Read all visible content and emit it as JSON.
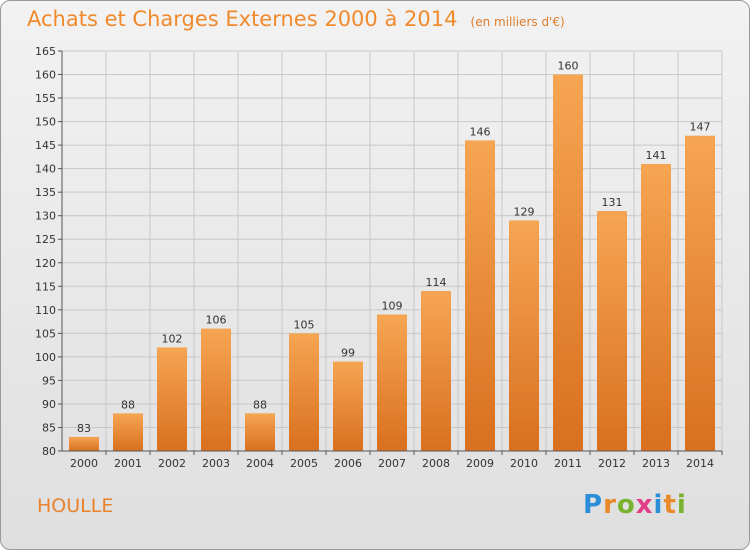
{
  "header": {
    "title": "Achats et Charges Externes 2000 à 2014",
    "subtitle": "(en milliers d'€)"
  },
  "footer": {
    "commune": "HOULLE",
    "logo": "Proxiti",
    "logo_letters": [
      "P",
      "r",
      "o",
      "x",
      "i",
      "t",
      "i"
    ]
  },
  "colors": {
    "bar_light": "#f6a553",
    "bar_dark": "#d8701f",
    "grid": "#c8c8c8",
    "accent": "#f08a2c"
  },
  "chart_data": {
    "type": "bar",
    "title": "Achats et Charges Externes 2000 à 2014",
    "subtitle": "(en milliers d'€)",
    "categories": [
      "2000",
      "2001",
      "2002",
      "2003",
      "2004",
      "2005",
      "2006",
      "2007",
      "2008",
      "2009",
      "2010",
      "2011",
      "2012",
      "2013",
      "2014"
    ],
    "values": [
      83,
      88,
      102,
      106,
      88,
      105,
      99,
      109,
      114,
      146,
      129,
      160,
      131,
      141,
      147
    ],
    "ylim": [
      80,
      165
    ],
    "yticks": [
      80,
      85,
      90,
      95,
      100,
      105,
      110,
      115,
      120,
      125,
      130,
      135,
      140,
      145,
      150,
      155,
      160,
      165
    ],
    "grid": true,
    "data_labels": true,
    "xlabel": "",
    "ylabel": ""
  }
}
